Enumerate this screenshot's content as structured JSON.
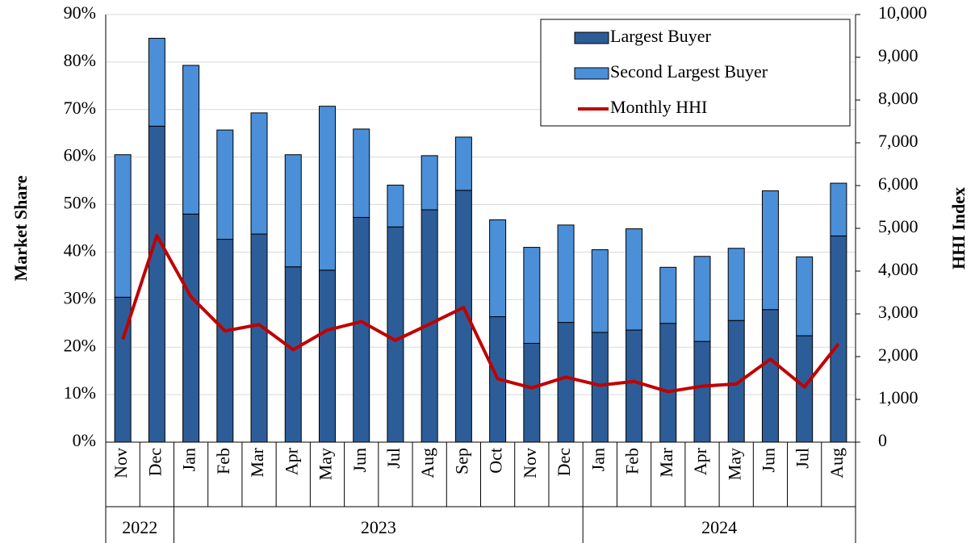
{
  "chart_data": {
    "type": "bar",
    "stacked": true,
    "y_label": "Market Share",
    "y2_label": "HHI Index",
    "categories": [
      "Nov",
      "Dec",
      "Jan",
      "Feb",
      "Mar",
      "Apr",
      "May",
      "Jun",
      "Jul",
      "Aug",
      "Sep",
      "Oct",
      "Nov",
      "Dec",
      "Jan",
      "Feb",
      "Mar",
      "Apr",
      "May",
      "Jun",
      "Jul",
      "Aug"
    ],
    "category_groups": [
      "2022",
      "2022",
      "2023",
      "2023",
      "2023",
      "2023",
      "2023",
      "2023",
      "2023",
      "2023",
      "2023",
      "2023",
      "2023",
      "2023",
      "2024",
      "2024",
      "2024",
      "2024",
      "2024",
      "2024",
      "2024",
      "2024"
    ],
    "series": [
      {
        "name": "Largest Buyer",
        "color": "#2c5d98",
        "values": [
          30.5,
          66.5,
          48,
          42.7,
          43.8,
          36.9,
          36.2,
          47.3,
          45.3,
          48.9,
          53,
          26.4,
          20.8,
          25.2,
          23.1,
          23.6,
          25,
          21.2,
          25.6,
          27.9,
          22.4,
          43.4
        ]
      },
      {
        "name": "Second Largest Buyer",
        "color": "#4a8fd8",
        "values": [
          30,
          18.5,
          31.3,
          23,
          25.5,
          23.6,
          34.5,
          18.6,
          8.8,
          11.4,
          11.2,
          20.4,
          20.2,
          20.5,
          17.4,
          21.3,
          11.8,
          17.9,
          15.2,
          25,
          16.6,
          11.1
        ]
      },
      {
        "name": "Monthly HHI",
        "color": "#c00000",
        "type": "line",
        "axis": "y2",
        "values": [
          2400,
          4830,
          3400,
          2600,
          2750,
          2160,
          2620,
          2820,
          2380,
          2760,
          3150,
          1480,
          1270,
          1520,
          1330,
          1420,
          1180,
          1310,
          1360,
          1940,
          1290,
          2300
        ]
      }
    ],
    "ylim": [
      0,
      90
    ],
    "yticks": [
      {
        "value": 0,
        "label": "0%"
      },
      {
        "value": 10,
        "label": "10%"
      },
      {
        "value": 20,
        "label": "20%"
      },
      {
        "value": 30,
        "label": "30%"
      },
      {
        "value": 40,
        "label": "40%"
      },
      {
        "value": 50,
        "label": "50%"
      },
      {
        "value": 60,
        "label": "60%"
      },
      {
        "value": 70,
        "label": "70%"
      },
      {
        "value": 80,
        "label": "80%"
      },
      {
        "value": 90,
        "label": "90%"
      }
    ],
    "y2lim": [
      0,
      10000
    ],
    "y2ticks": [
      0,
      {
        "value": 1000,
        "label": "1,000"
      },
      {
        "value": 2000,
        "label": "2,000"
      },
      {
        "value": 3000,
        "label": "3,000"
      },
      {
        "value": 4000,
        "label": "4,000"
      },
      {
        "value": 5000,
        "label": "5,000"
      },
      {
        "value": 6000,
        "label": "6,000"
      },
      {
        "value": 7000,
        "label": "7,000"
      },
      {
        "value": 8000,
        "label": "8,000"
      },
      {
        "value": 9000,
        "label": "9,000"
      },
      {
        "value": 10000,
        "label": "10,000"
      }
    ],
    "grid": true,
    "legend": "upper right"
  }
}
